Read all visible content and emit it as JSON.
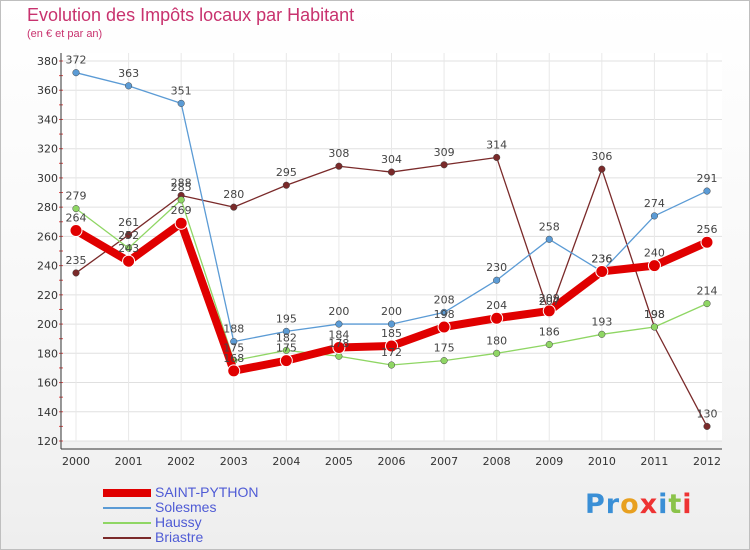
{
  "chart_data": {
    "type": "line",
    "title": "Evolution des Impôts locaux par Habitant",
    "subtitle": "(en € et par an)",
    "categories": [
      "2000",
      "2001",
      "2002",
      "2003",
      "2004",
      "2005",
      "2006",
      "2007",
      "2008",
      "2009",
      "2010",
      "2011",
      "2012"
    ],
    "ylim": [
      120,
      380
    ],
    "yticks": [
      120,
      140,
      160,
      180,
      200,
      220,
      240,
      260,
      280,
      300,
      320,
      340,
      360,
      380
    ],
    "grid": true,
    "series": [
      {
        "name": "Briastre",
        "color": "#7a2a2a",
        "values": [
          235,
          261,
          288,
          280,
          295,
          308,
          304,
          309,
          314,
          207,
          306,
          198,
          130
        ]
      },
      {
        "name": "Haussy",
        "color": "#8fd664",
        "values": [
          279,
          252,
          285,
          175,
          182,
          178,
          172,
          175,
          180,
          186,
          193,
          198,
          214
        ]
      },
      {
        "name": "Solesmes",
        "color": "#5b9bd5",
        "values": [
          372,
          363,
          351,
          188,
          195,
          200,
          200,
          208,
          230,
          258,
          236,
          274,
          291
        ]
      },
      {
        "name": "SAINT-PYTHON",
        "color": "#e00000",
        "values": [
          264,
          243,
          269,
          168,
          175,
          184,
          185,
          198,
          204,
          209,
          236,
          240,
          256
        ]
      }
    ]
  },
  "legend": [
    {
      "name": "SAINT-PYTHON",
      "color": "#e00000"
    },
    {
      "name": "Solesmes",
      "color": "#5b9bd5"
    },
    {
      "name": "Haussy",
      "color": "#8fd664"
    },
    {
      "name": "Briastre",
      "color": "#7a2a2a"
    }
  ],
  "logo": {
    "text": "Proxiti"
  }
}
